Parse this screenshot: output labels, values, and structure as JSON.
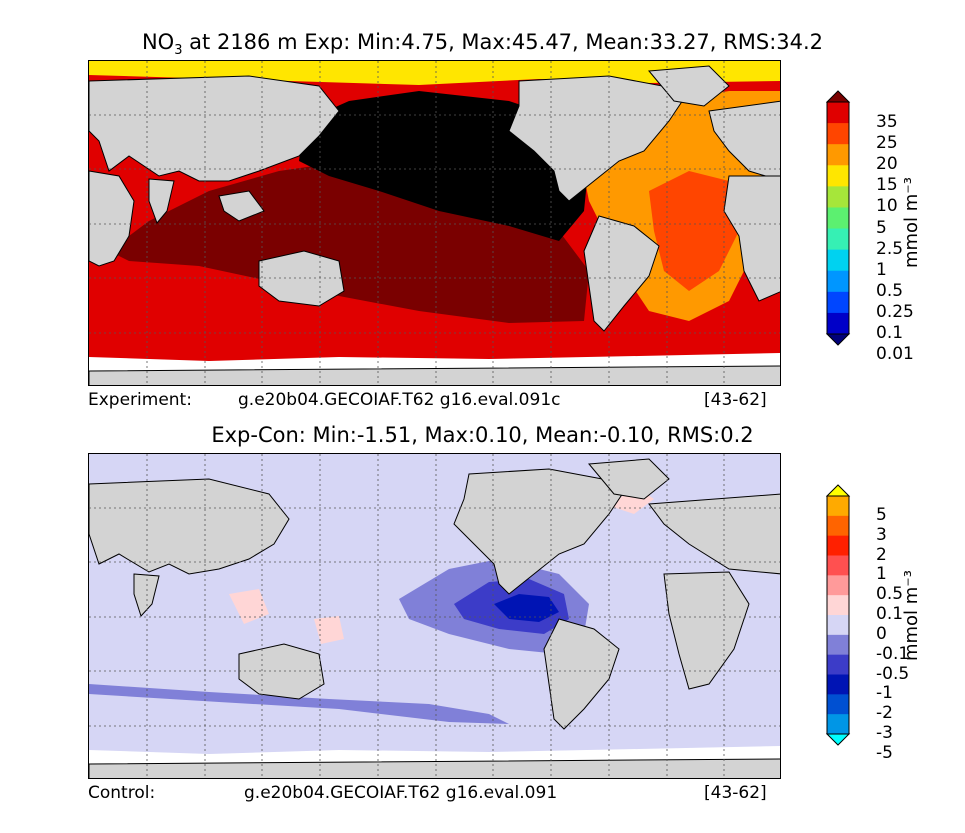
{
  "panels": [
    {
      "title_species": "NO",
      "title_sub": "3",
      "title_rest": " at 2186 m Exp: Min:4.75, Max:45.47, Mean:33.27, RMS:34.2",
      "footer_left": "Experiment:",
      "footer_case": "g.e20b04.GECOIAF.T62 g16.eval.091c",
      "footer_range": "[43-62]",
      "colorbar": {
        "labels": [
          "35",
          "25",
          "20",
          "15",
          "10",
          "5",
          "2.5",
          "1",
          "0.5",
          "0.25",
          "0.1",
          "0.01"
        ],
        "colors": [
          "#7a0000",
          "#e00000",
          "#ff4500",
          "#ff9900",
          "#ffe600",
          "#a6e63a",
          "#5cf070",
          "#36f0b4",
          "#00d2f0",
          "#0096ff",
          "#0046ff",
          "#0000c8",
          "#00007a"
        ],
        "units": "mmol m⁻³"
      }
    },
    {
      "title": "Exp-Con: Min:-1.51, Max:0.10, Mean:-0.10, RMS:0.2",
      "footer_left": "Control:",
      "footer_case": "g.e20b04.GECOIAF.T62 g16.eval.091",
      "footer_range": "[43-62]",
      "colorbar": {
        "labels": [
          "5",
          "3",
          "2",
          "1",
          "0.5",
          "0.1",
          "0",
          "-0.1",
          "-0.5",
          "-1",
          "-2",
          "-3",
          "-5"
        ],
        "colors": [
          "#ffff00",
          "#ffaa00",
          "#ff6400",
          "#ff2000",
          "#ff5050",
          "#ff9a9a",
          "#ffd6d6",
          "#d6d6f5",
          "#8080d8",
          "#3c3cc8",
          "#0014b4",
          "#0050d2",
          "#0096e6",
          "#00ffff"
        ],
        "units": "mmol m⁻³"
      }
    }
  ]
}
